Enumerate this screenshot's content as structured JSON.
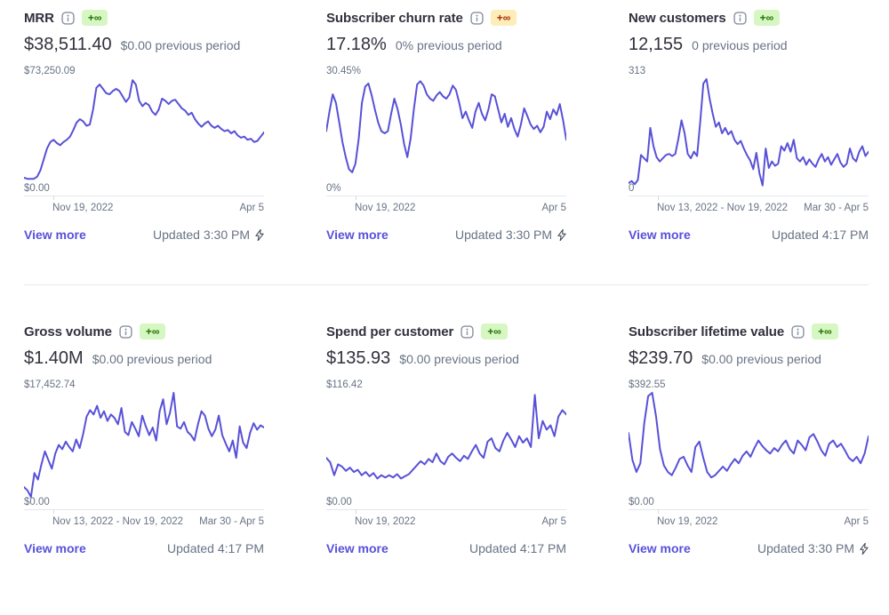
{
  "colors": {
    "line": "#5851d8",
    "link": "#5851d8",
    "badge_green_bg": "#d7f7c2",
    "badge_green_text": "#217005",
    "badge_yellow_bg": "#fcedb9",
    "badge_yellow_text": "#a82c00",
    "text_primary": "#30313d",
    "text_secondary": "#687385",
    "axis_line": "#e3e8ee"
  },
  "cards": [
    {
      "title": "MRR",
      "badge": "+∞",
      "badge_style": "green",
      "value": "$38,511.40",
      "previous": "$0.00 previous period",
      "view_more": "View more",
      "updated": "Updated 3:30 PM",
      "has_bolt": true,
      "chart": {
        "type": "line",
        "max_label": "$73,250.09",
        "min_label": "$0.00",
        "x_left": "Nov 19, 2022",
        "x_right": "Apr 5",
        "values": [
          0.09,
          0.08,
          0.08,
          0.08,
          0.1,
          0.16,
          0.26,
          0.36,
          0.42,
          0.44,
          0.41,
          0.39,
          0.42,
          0.44,
          0.47,
          0.53,
          0.6,
          0.63,
          0.61,
          0.57,
          0.58,
          0.72,
          0.92,
          0.95,
          0.91,
          0.87,
          0.86,
          0.89,
          0.91,
          0.89,
          0.84,
          0.79,
          0.83,
          0.99,
          0.95,
          0.8,
          0.75,
          0.78,
          0.76,
          0.7,
          0.67,
          0.72,
          0.82,
          0.8,
          0.77,
          0.8,
          0.81,
          0.77,
          0.73,
          0.71,
          0.67,
          0.69,
          0.63,
          0.59,
          0.56,
          0.59,
          0.61,
          0.57,
          0.55,
          0.57,
          0.54,
          0.52,
          0.53,
          0.5,
          0.52,
          0.48,
          0.46,
          0.47,
          0.44,
          0.45,
          0.42,
          0.43,
          0.47,
          0.51
        ]
      }
    },
    {
      "title": "Subscriber churn rate",
      "badge": "+∞",
      "badge_style": "warn",
      "value": "17.18%",
      "previous": "0% previous period",
      "view_more": "View more",
      "updated": "Updated 3:30 PM",
      "has_bolt": true,
      "chart": {
        "type": "line",
        "max_label": "30.45%",
        "min_label": "0%",
        "x_left": "Nov 19, 2022",
        "x_right": "Apr 5",
        "values": [
          0.52,
          0.7,
          0.86,
          0.78,
          0.6,
          0.42,
          0.28,
          0.17,
          0.14,
          0.22,
          0.45,
          0.78,
          0.93,
          0.96,
          0.85,
          0.72,
          0.6,
          0.52,
          0.5,
          0.52,
          0.68,
          0.82,
          0.72,
          0.58,
          0.4,
          0.28,
          0.45,
          0.72,
          0.95,
          0.98,
          0.94,
          0.86,
          0.82,
          0.8,
          0.85,
          0.88,
          0.84,
          0.82,
          0.86,
          0.94,
          0.9,
          0.78,
          0.64,
          0.7,
          0.62,
          0.55,
          0.7,
          0.78,
          0.68,
          0.62,
          0.72,
          0.86,
          0.84,
          0.72,
          0.6,
          0.68,
          0.56,
          0.64,
          0.54,
          0.47,
          0.58,
          0.73,
          0.66,
          0.58,
          0.54,
          0.57,
          0.51,
          0.56,
          0.7,
          0.63,
          0.72,
          0.67,
          0.77,
          0.62,
          0.44
        ]
      }
    },
    {
      "title": "New customers",
      "badge": "+∞",
      "badge_style": "green",
      "value": "12,155",
      "previous": "0 previous period",
      "view_more": "View more",
      "updated": "Updated 4:17 PM",
      "has_bolt": false,
      "chart": {
        "type": "line",
        "max_label": "313",
        "min_label": "0",
        "x_left": "Nov 13, 2022 - Nov 19, 2022",
        "x_right": "Mar 30 - Apr 5",
        "values": [
          0.04,
          0.06,
          0.03,
          0.07,
          0.3,
          0.27,
          0.24,
          0.55,
          0.38,
          0.28,
          0.24,
          0.27,
          0.3,
          0.31,
          0.29,
          0.31,
          0.45,
          0.62,
          0.5,
          0.31,
          0.27,
          0.33,
          0.29,
          0.6,
          0.96,
          1.0,
          0.82,
          0.68,
          0.56,
          0.6,
          0.5,
          0.55,
          0.49,
          0.52,
          0.44,
          0.4,
          0.43,
          0.36,
          0.3,
          0.25,
          0.17,
          0.32,
          0.13,
          0.02,
          0.36,
          0.18,
          0.24,
          0.2,
          0.22,
          0.38,
          0.34,
          0.41,
          0.33,
          0.44,
          0.27,
          0.24,
          0.28,
          0.21,
          0.26,
          0.22,
          0.19,
          0.26,
          0.31,
          0.24,
          0.28,
          0.21,
          0.26,
          0.31,
          0.23,
          0.19,
          0.22,
          0.36,
          0.27,
          0.24,
          0.33,
          0.38,
          0.29,
          0.33
        ]
      }
    },
    {
      "title": "Gross volume",
      "badge": "+∞",
      "badge_style": "green",
      "value": "$1.40M",
      "previous": "$0.00 previous period",
      "view_more": "View more",
      "updated": "Updated 4:17 PM",
      "has_bolt": false,
      "chart": {
        "type": "line",
        "max_label": "$17,452.74",
        "min_label": "$0.00",
        "x_left": "Nov 13, 2022 - Nov 19, 2022",
        "x_right": "Mar 30 - Apr 5",
        "values": [
          0.13,
          0.1,
          0.04,
          0.26,
          0.2,
          0.34,
          0.46,
          0.38,
          0.3,
          0.44,
          0.52,
          0.48,
          0.55,
          0.5,
          0.46,
          0.57,
          0.49,
          0.62,
          0.78,
          0.84,
          0.8,
          0.88,
          0.77,
          0.83,
          0.74,
          0.8,
          0.77,
          0.71,
          0.86,
          0.64,
          0.61,
          0.73,
          0.67,
          0.6,
          0.79,
          0.69,
          0.61,
          0.68,
          0.56,
          0.83,
          0.94,
          0.71,
          0.82,
          1.0,
          0.69,
          0.67,
          0.73,
          0.64,
          0.61,
          0.56,
          0.71,
          0.83,
          0.79,
          0.67,
          0.6,
          0.66,
          0.79,
          0.61,
          0.53,
          0.46,
          0.56,
          0.4,
          0.69,
          0.54,
          0.49,
          0.63,
          0.72,
          0.66,
          0.7,
          0.68
        ]
      }
    },
    {
      "title": "Spend per customer",
      "badge": "+∞",
      "badge_style": "green",
      "value": "$135.93",
      "previous": "$0.00 previous period",
      "view_more": "View more",
      "updated": "Updated 4:17 PM",
      "has_bolt": false,
      "chart": {
        "type": "line",
        "max_label": "$116.42",
        "min_label": "$0.00",
        "x_left": "Nov 19, 2022",
        "x_right": "Apr 5",
        "values": [
          0.4,
          0.36,
          0.24,
          0.34,
          0.32,
          0.28,
          0.31,
          0.27,
          0.29,
          0.24,
          0.27,
          0.23,
          0.26,
          0.21,
          0.24,
          0.22,
          0.24,
          0.22,
          0.25,
          0.21,
          0.23,
          0.25,
          0.29,
          0.33,
          0.37,
          0.34,
          0.39,
          0.36,
          0.44,
          0.37,
          0.34,
          0.41,
          0.44,
          0.4,
          0.37,
          0.42,
          0.39,
          0.46,
          0.52,
          0.44,
          0.4,
          0.55,
          0.58,
          0.49,
          0.46,
          0.56,
          0.63,
          0.57,
          0.5,
          0.6,
          0.54,
          0.58,
          0.5,
          0.98,
          0.58,
          0.74,
          0.66,
          0.7,
          0.6,
          0.78,
          0.84,
          0.8
        ]
      }
    },
    {
      "title": "Subscriber lifetime value",
      "badge": "+∞",
      "badge_style": "green",
      "value": "$239.70",
      "previous": "$0.00 previous period",
      "view_more": "View more",
      "updated": "Updated 3:30 PM",
      "has_bolt": true,
      "chart": {
        "type": "line",
        "max_label": "$392.55",
        "min_label": "$0.00",
        "x_left": "Nov 19, 2022",
        "x_right": "Apr 5",
        "values": [
          0.63,
          0.38,
          0.27,
          0.35,
          0.72,
          0.97,
          1.0,
          0.78,
          0.48,
          0.33,
          0.27,
          0.24,
          0.31,
          0.39,
          0.41,
          0.33,
          0.27,
          0.5,
          0.55,
          0.4,
          0.27,
          0.22,
          0.24,
          0.28,
          0.32,
          0.28,
          0.34,
          0.39,
          0.35,
          0.42,
          0.46,
          0.41,
          0.49,
          0.56,
          0.51,
          0.47,
          0.44,
          0.49,
          0.46,
          0.52,
          0.56,
          0.48,
          0.44,
          0.56,
          0.52,
          0.47,
          0.59,
          0.62,
          0.55,
          0.47,
          0.42,
          0.53,
          0.56,
          0.5,
          0.53,
          0.47,
          0.4,
          0.37,
          0.41,
          0.35,
          0.44,
          0.6
        ]
      }
    }
  ]
}
